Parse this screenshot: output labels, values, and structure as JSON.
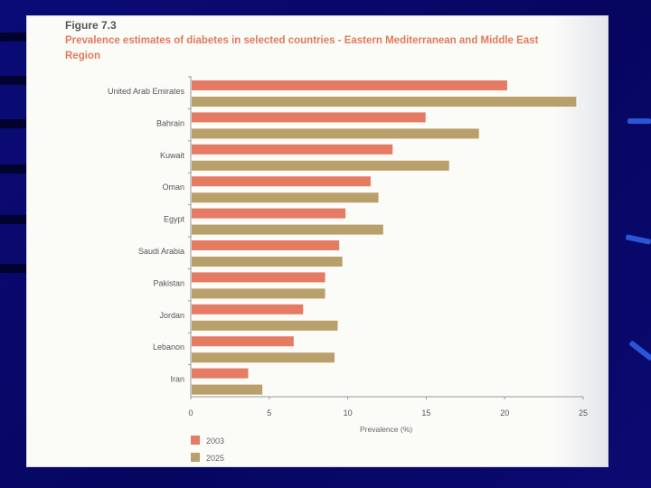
{
  "figure": {
    "label": "Figure 7.3",
    "title": "Prevalence estimates of diabetes in selected countries - Eastern Mediterranean and Middle East Region"
  },
  "colors": {
    "series_2003": "#e57b62",
    "series_2025": "#b9a06a",
    "title": "#e07a5c"
  },
  "chart_data": {
    "type": "bar",
    "orientation": "horizontal",
    "title": "Prevalence estimates of diabetes in selected countries - Eastern Mediterranean and Middle East Region",
    "categories": [
      "United Arab Emirates",
      "Bahrain",
      "Kuwait",
      "Oman",
      "Egypt",
      "Saudi Arabia",
      "Pakistan",
      "Jordan",
      "Lebanon",
      "Iran"
    ],
    "series": [
      {
        "name": "2003",
        "values": [
          20.1,
          14.9,
          12.8,
          11.4,
          9.8,
          9.4,
          8.5,
          7.1,
          6.5,
          3.6
        ]
      },
      {
        "name": "2025",
        "values": [
          24.5,
          18.3,
          16.4,
          11.9,
          12.2,
          9.6,
          8.5,
          9.3,
          9.1,
          4.5
        ]
      }
    ],
    "xlabel": "Prevalence (%)",
    "ylabel": "",
    "xlim": [
      0,
      25
    ],
    "xticks": [
      "0",
      "5",
      "10",
      "15",
      "20",
      "25"
    ],
    "legend_position": "bottom-left"
  }
}
